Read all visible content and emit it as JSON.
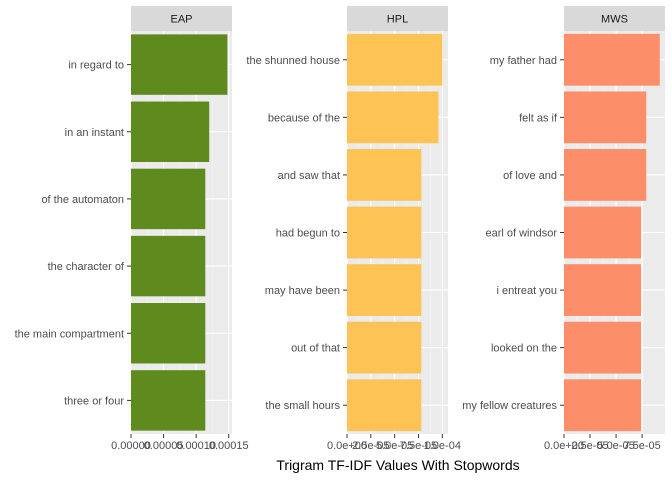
{
  "chart_data": {
    "type": "bar",
    "orientation": "horizontal",
    "xlabel": "Trigram TF-IDF Values With Stopwords",
    "grid": true,
    "facets": [
      {
        "name": "EAP",
        "color": "#5e8a1e",
        "xlim": [
          0,
          0.000155
        ],
        "ticks": [
          0,
          5e-05,
          0.0001,
          0.00015
        ],
        "tick_labels": [
          "0.00000",
          "0.00005",
          "0.00010",
          "0.00015"
        ],
        "categories": [
          "in regard to",
          "in an instant",
          "of the automaton",
          "the character of",
          "the main compartment",
          "three or four"
        ],
        "values": [
          0.000148,
          0.00012,
          0.000114,
          0.000114,
          0.000114,
          0.000114
        ]
      },
      {
        "name": "HPL",
        "color": "#fdc355",
        "xlim": [
          0,
          0.000106
        ],
        "ticks": [
          0,
          2.5e-05,
          5e-05,
          7.5e-05,
          0.0001
        ],
        "tick_labels": [
          "0.0e+00",
          "2.5e-05",
          "5.0e-05",
          "7.5e-05",
          "1.0e-04"
        ],
        "categories": [
          "the shunned house",
          "because of the",
          "and saw that",
          "had begun to",
          "may have been",
          "out of that",
          "the small hours"
        ],
        "values": [
          0.0001,
          9.6e-05,
          7.8e-05,
          7.8e-05,
          7.8e-05,
          7.8e-05,
          7.8e-05
        ]
      },
      {
        "name": "MWS",
        "color": "#fc8f6a",
        "xlim": [
          0,
          9.7e-05
        ],
        "ticks": [
          0,
          2.5e-05,
          5e-05,
          7.5e-05
        ],
        "tick_labels": [
          "0.0e+00",
          "2.5e-05",
          "5.0e-05",
          "7.5e-05"
        ],
        "categories": [
          "my father had",
          "felt as if",
          "of love and",
          "earl of windsor",
          "i entreat you",
          "looked on the",
          "my fellow creatures"
        ],
        "values": [
          9.2e-05,
          7.9e-05,
          7.9e-05,
          7.4e-05,
          7.4e-05,
          7.4e-05,
          7.4e-05
        ]
      }
    ]
  }
}
